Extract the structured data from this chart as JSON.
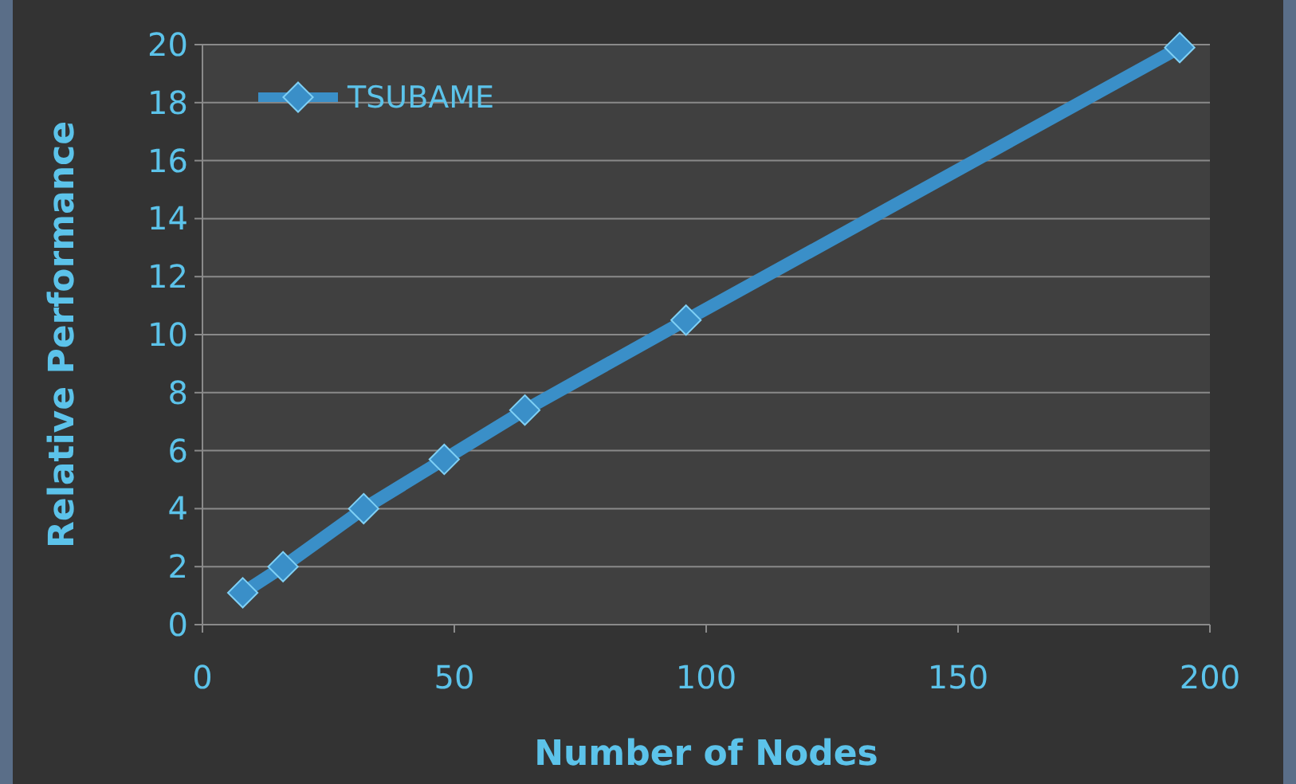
{
  "chart_data": {
    "type": "line",
    "xlabel": "Number of Nodes",
    "ylabel": "Relative Performance",
    "series": [
      {
        "name": "TSUBAME",
        "color": "#3a8fc8",
        "x": [
          8,
          16,
          32,
          48,
          64,
          96,
          194
        ],
        "values": [
          1.1,
          2.0,
          4.0,
          5.7,
          7.4,
          10.5,
          19.9
        ]
      }
    ],
    "xlim": [
      0,
      200
    ],
    "xticks": [
      0,
      50,
      100,
      150,
      200
    ],
    "ylim": [
      0,
      20
    ],
    "yticks": [
      0,
      2,
      4,
      6,
      8,
      10,
      12,
      14,
      16,
      18,
      20
    ],
    "grid": "y",
    "legend": "top left",
    "marker": "diamond",
    "line_style": "solid"
  }
}
